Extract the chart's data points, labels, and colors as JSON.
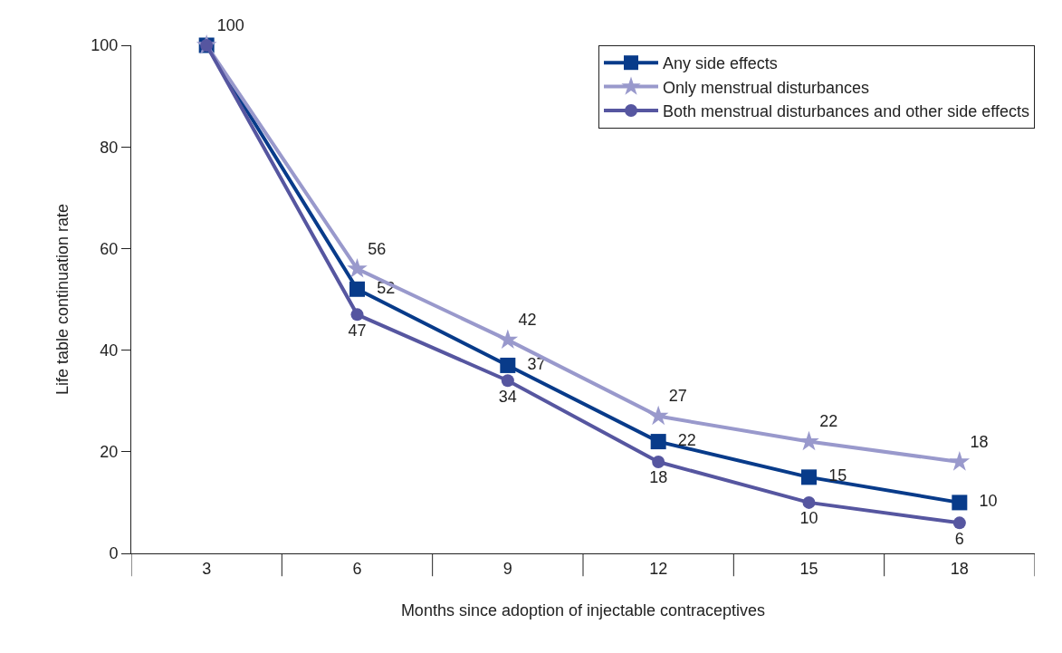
{
  "chart_data": {
    "type": "line",
    "xlabel": "Months since adoption of injectable contraceptives",
    "ylabel": "Life table continuation rate",
    "categories": [
      "3",
      "6",
      "9",
      "12",
      "15",
      "18"
    ],
    "series": [
      {
        "name": "Any side effects",
        "color": "#083b8a",
        "marker": "square",
        "values": [
          100,
          52,
          37,
          22,
          15,
          10
        ],
        "value_labels": [
          null,
          "52",
          "37",
          "22",
          "15",
          "10"
        ]
      },
      {
        "name": "Only menstrual disturbances",
        "color": "#9999cc",
        "marker": "star",
        "values": [
          100,
          56,
          42,
          27,
          22,
          18
        ],
        "value_labels": [
          "100",
          "56",
          "42",
          "27",
          "22",
          "18"
        ]
      },
      {
        "name": "Both menstrual disturbances and other side effects",
        "color": "#5656a0",
        "marker": "circle",
        "values": [
          100,
          47,
          34,
          18,
          10,
          6
        ],
        "value_labels": [
          null,
          "47",
          "34",
          "18",
          "10",
          "6"
        ]
      }
    ],
    "ylim": [
      0,
      100
    ],
    "yticks": [
      0,
      20,
      40,
      60,
      80,
      100
    ],
    "grid": false,
    "legend": "top right",
    "line_style": "solid"
  }
}
